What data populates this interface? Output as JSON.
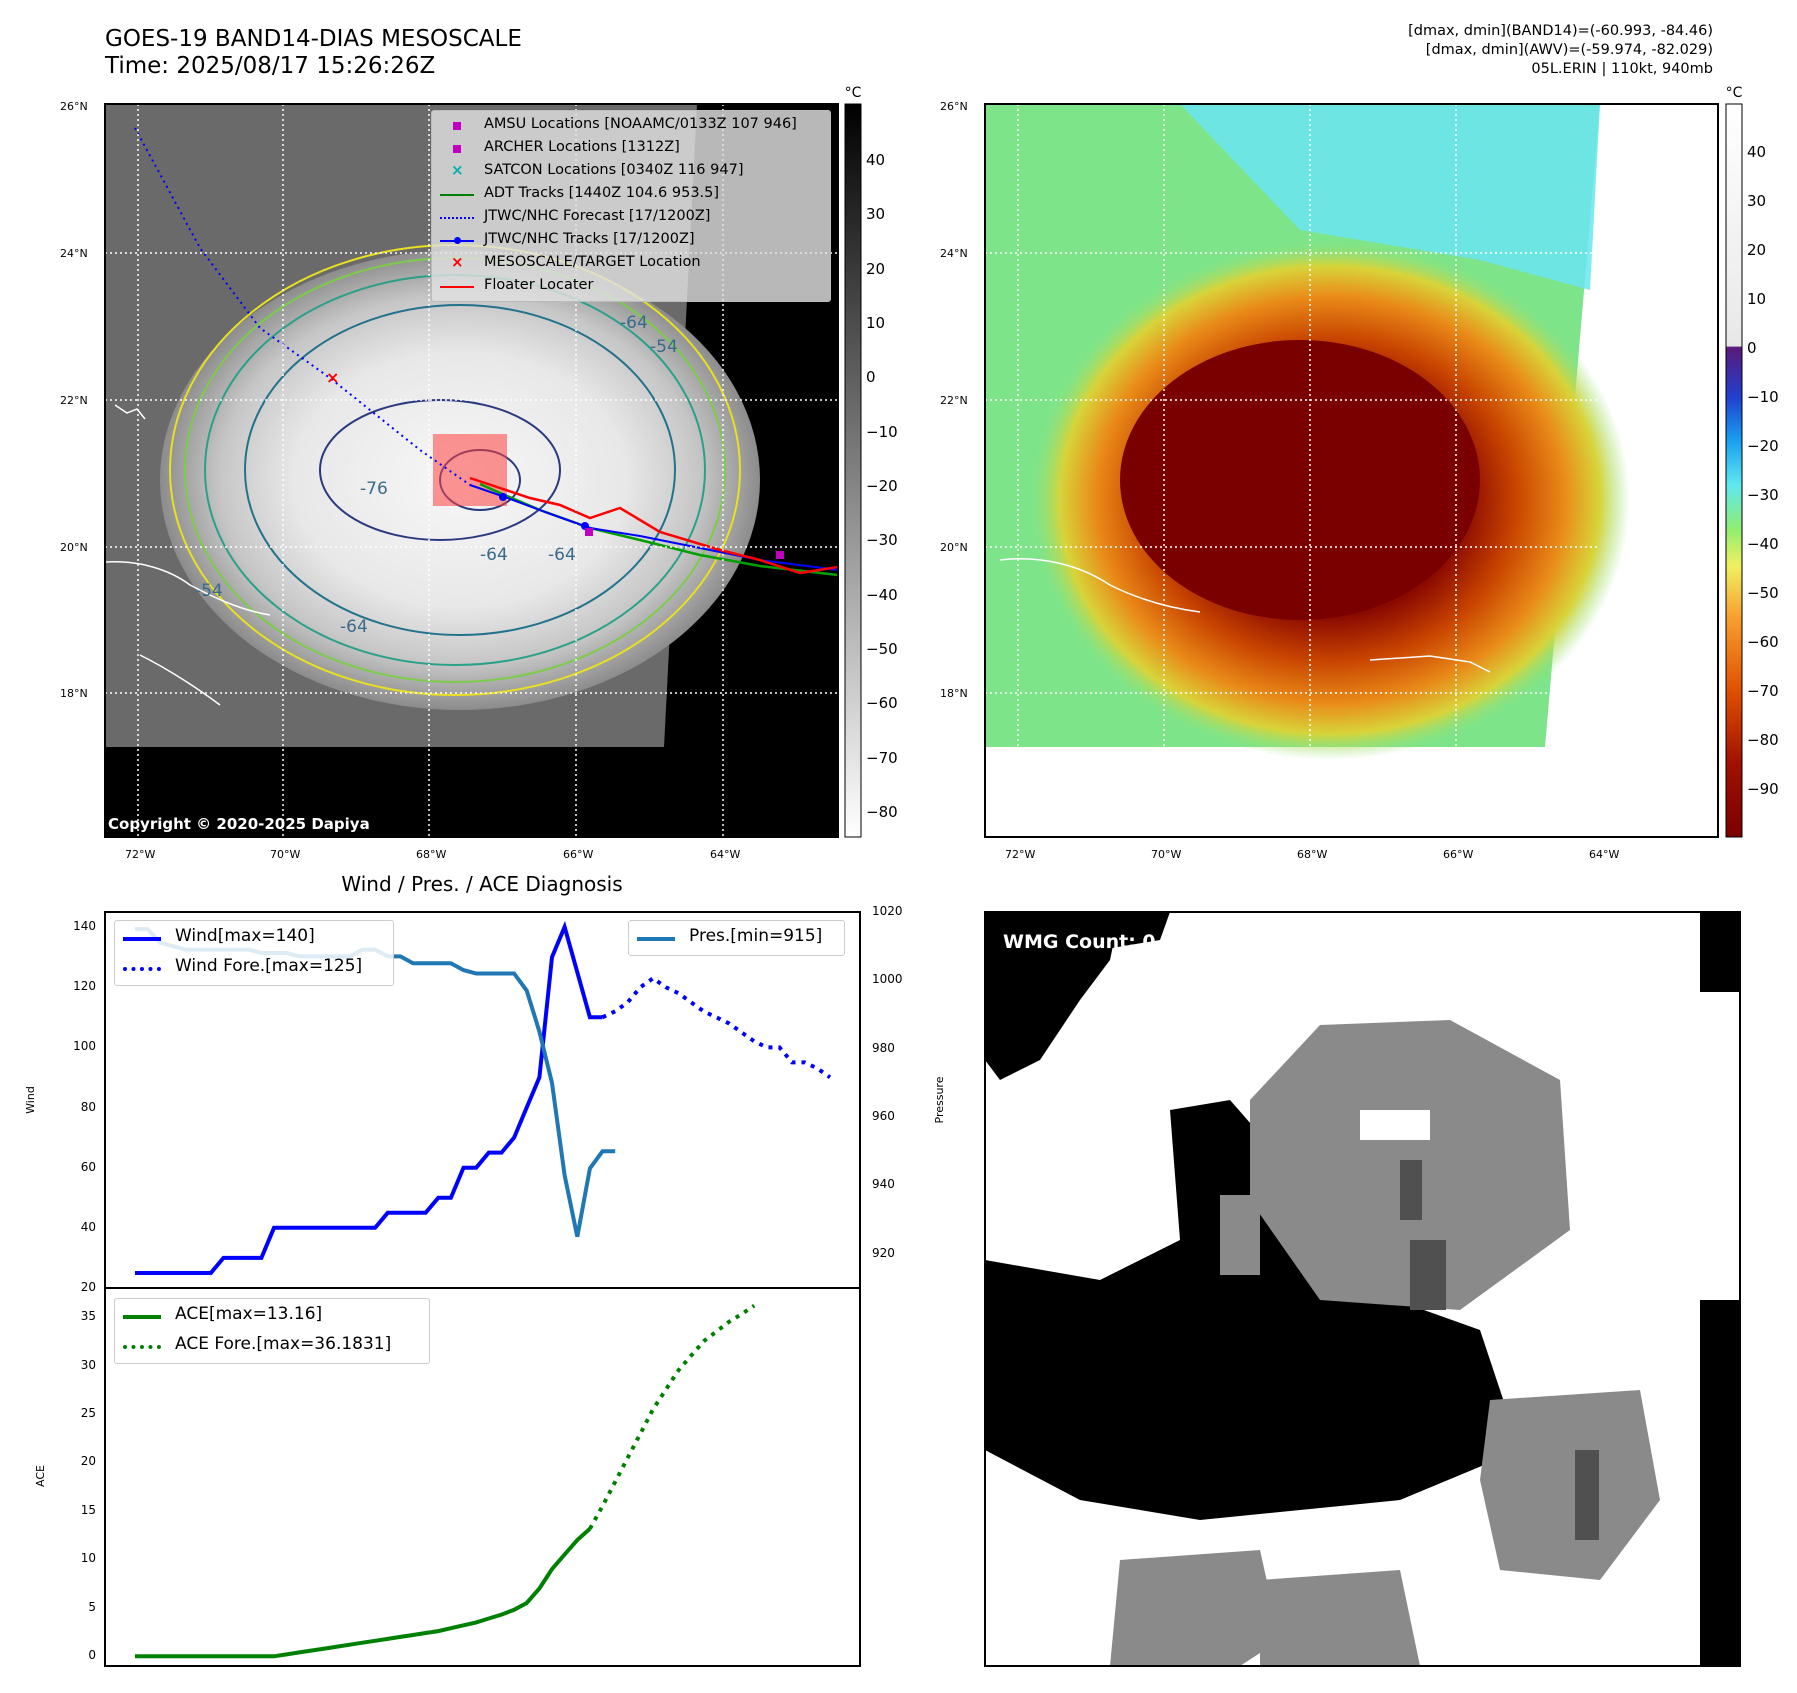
{
  "header": {
    "title_line1": "GOES-19 BAND14-DIAS MESOSCALE",
    "title_line2": "Time: 2025/08/17 15:26:26Z",
    "info_line1": "[dmax, dmin](BAND14)=(-60.993, -84.46)",
    "info_line2": "[dmax, dmin](AWV)=(-59.974, -82.029)",
    "info_line3": "05L.ERIN | 110kt, 940mb"
  },
  "map_axes": {
    "lat_labels": [
      "26°N",
      "24°N",
      "22°N",
      "20°N",
      "18°N"
    ],
    "lon_labels": [
      "72°W",
      "70°W",
      "68°W",
      "66°W",
      "64°W"
    ]
  },
  "map1": {
    "copyright": "Copyright © 2020-2025 Dapiya",
    "contour_labels": [
      "-64",
      "-54",
      "-76",
      "-64",
      "-64",
      "-54",
      "-64"
    ],
    "legend": [
      {
        "label": "AMSU Locations [NOAAMC/0133Z 107 946]",
        "symbol": "square",
        "color": "#c000c0"
      },
      {
        "label": "ARCHER Locations [1312Z]",
        "symbol": "square",
        "color": "#c000c0"
      },
      {
        "label": "SATCON Locations [0340Z 116 947]",
        "symbol": "x",
        "color": "#00b0b0"
      },
      {
        "label": "ADT Tracks [1440Z 104.6 953.5]",
        "symbol": "line",
        "color": "#008000"
      },
      {
        "label": "JTWC/NHC Forecast [17/1200Z]",
        "symbol": "dotted",
        "color": "#0000ff"
      },
      {
        "label": "JTWC/NHC Tracks [17/1200Z]",
        "symbol": "line-dot",
        "color": "#0000ff"
      },
      {
        "label": "MESOSCALE/TARGET Location",
        "symbol": "x",
        "color": "#ff0000"
      },
      {
        "label": "Floater Locater",
        "symbol": "line",
        "color": "#ff0000"
      }
    ],
    "colorbar": {
      "unit": "°C",
      "ticks": [
        "40",
        "30",
        "20",
        "10",
        "0",
        "−10",
        "−20",
        "−30",
        "−40",
        "−50",
        "−60",
        "−70",
        "−80"
      ]
    }
  },
  "map2": {
    "colorbar": {
      "unit": "°C",
      "ticks": [
        "40",
        "30",
        "20",
        "10",
        "0",
        "−10",
        "−20",
        "−30",
        "−40",
        "−50",
        "−60",
        "−70",
        "−80",
        "−90"
      ]
    }
  },
  "wmg": {
    "label": "WMG Count: 0"
  },
  "chart_data": [
    {
      "type": "line",
      "title": "Wind / Pres. / ACE Diagnosis",
      "ylabel": "Wind",
      "ylabel_right": "Pressure",
      "ylim": [
        20,
        145
      ],
      "ylim_right": [
        910,
        1020
      ],
      "yticks": [
        "140",
        "120",
        "100",
        "80",
        "60",
        "40",
        "20"
      ],
      "yticks_right": [
        "1020",
        "1000",
        "980",
        "960",
        "940",
        "920"
      ],
      "series": [
        {
          "name": "Wind[max=140]",
          "axis": "left",
          "style": "solid",
          "color": "#0000ff",
          "values": [
            25,
            25,
            25,
            25,
            25,
            25,
            25,
            30,
            30,
            30,
            30,
            40,
            40,
            40,
            40,
            40,
            40,
            40,
            40,
            40,
            45,
            45,
            45,
            45,
            50,
            50,
            60,
            60,
            65,
            65,
            70,
            80,
            90,
            130,
            140,
            125,
            110,
            110
          ]
        },
        {
          "name": "Wind Fore.[max=125]",
          "axis": "left",
          "style": "dotted",
          "color": "#0000ff",
          "x_start": 37,
          "values": [
            110,
            112,
            115,
            120,
            123,
            120,
            118,
            115,
            112,
            110,
            108,
            105,
            102,
            100,
            100,
            95,
            95,
            93,
            90
          ]
        },
        {
          "name": "Pres.[min=915]",
          "axis": "right",
          "style": "solid",
          "color": "#1f77b4",
          "values": [
            1015,
            1015,
            1011,
            1010,
            1009,
            1009,
            1009,
            1009,
            1009,
            1009,
            1008,
            1008,
            1008,
            1007,
            1007,
            1007,
            1007,
            1007,
            1009,
            1009,
            1007,
            1007,
            1005,
            1005,
            1005,
            1005,
            1003,
            1002,
            1002,
            1002,
            1002,
            997,
            985,
            970,
            943,
            925,
            945,
            950,
            950
          ]
        }
      ]
    },
    {
      "type": "line",
      "ylabel": "ACE",
      "ylim": [
        -1,
        38
      ],
      "yticks": [
        "35",
        "30",
        "25",
        "20",
        "15",
        "10",
        "5",
        "0"
      ],
      "series": [
        {
          "name": "ACE[max=13.16]",
          "style": "solid",
          "color": "#008000",
          "values": [
            0,
            0,
            0,
            0,
            0,
            0,
            0,
            0,
            0,
            0,
            0,
            0,
            0.2,
            0.4,
            0.6,
            0.8,
            1.0,
            1.2,
            1.4,
            1.6,
            1.8,
            2.0,
            2.2,
            2.4,
            2.6,
            2.9,
            3.2,
            3.5,
            3.9,
            4.3,
            4.8,
            5.5,
            7.0,
            9.0,
            10.5,
            12.0,
            13.16
          ]
        },
        {
          "name": "ACE Fore.[max=36.1831]",
          "style": "dotted",
          "color": "#008000",
          "x_start": 36,
          "values": [
            13.16,
            15.5,
            18.0,
            20.5,
            23.0,
            25.5,
            27.5,
            29.5,
            31.0,
            32.5,
            33.5,
            34.5,
            35.3,
            36.1831
          ]
        }
      ]
    }
  ]
}
